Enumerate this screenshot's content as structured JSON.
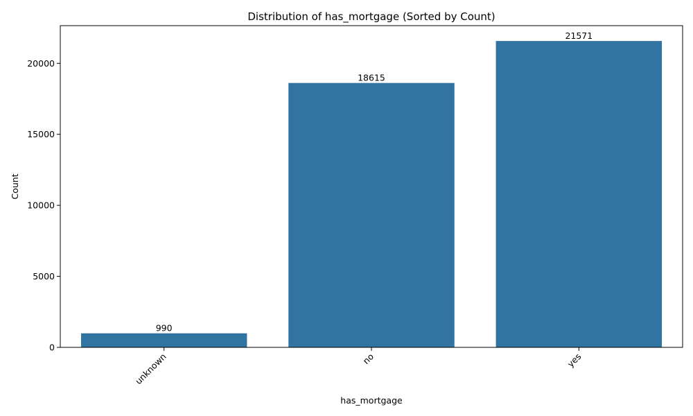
{
  "chart_data": {
    "type": "bar",
    "title": "Distribution of has_mortgage (Sorted by Count)",
    "xlabel": "has_mortgage",
    "ylabel": "Count",
    "categories": [
      "unknown",
      "no",
      "yes"
    ],
    "values": [
      990,
      18615,
      21571
    ],
    "data_labels": [
      "990",
      "18615",
      "21571"
    ],
    "ylim": [
      0,
      22650
    ],
    "yticks": [
      0,
      5000,
      10000,
      15000,
      20000
    ],
    "ytick_labels": [
      "0",
      "5000",
      "10000",
      "15000",
      "20000"
    ],
    "bar_color": "#3274a1",
    "grid": false,
    "legend": "none"
  }
}
